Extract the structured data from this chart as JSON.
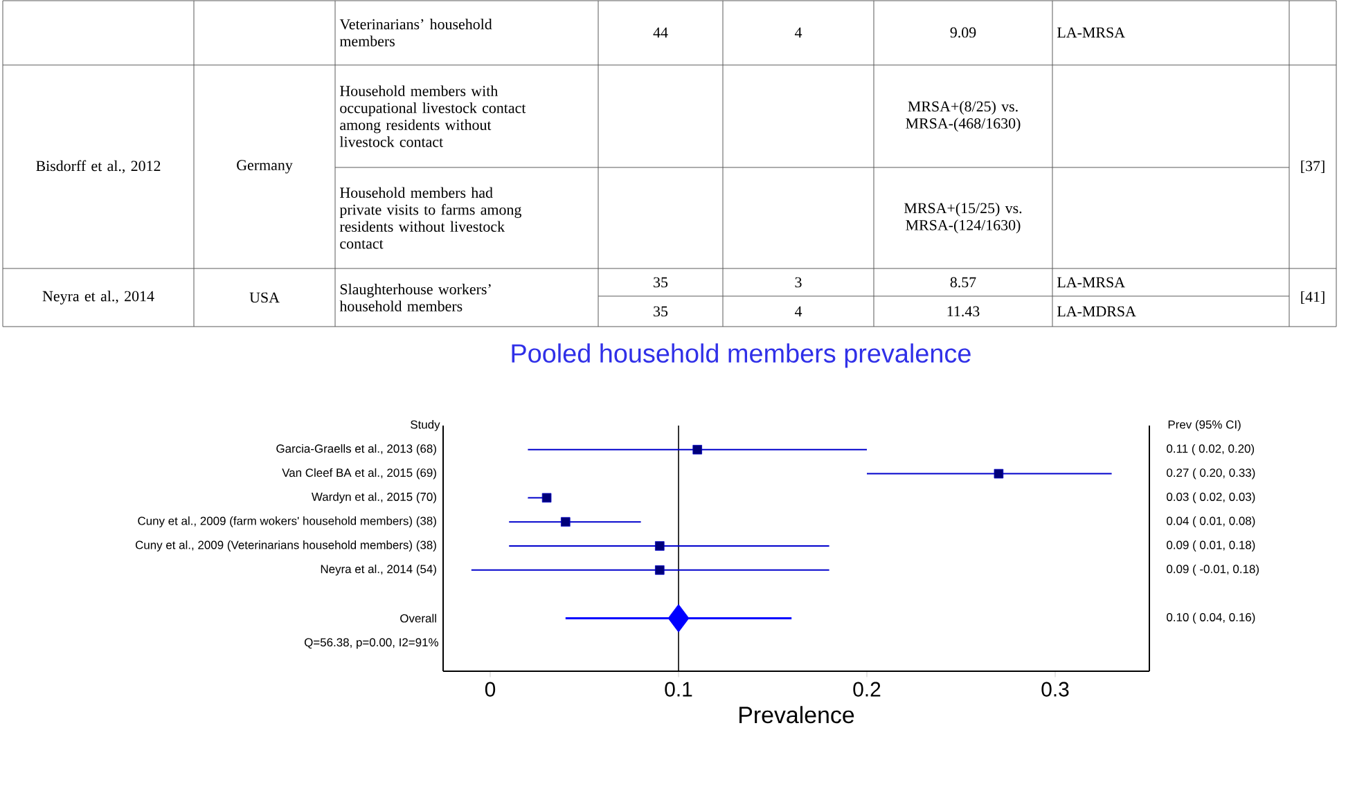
{
  "chart_data": {
    "type": "scatter",
    "orientation": "horizontal",
    "title": "Pooled household members prevalence",
    "xlabel": "Prevalence",
    "categories": [
      "Garcia-Graells et al., 2013 (68)",
      "Van Cleef BA et al., 2015 (69)",
      "Wardyn et al., 2015 (70)",
      "Cuny et al., 2009 (farm wokers' household members) (38)",
      "Cuny et al., 2009 (Veterinarians household members) (38)",
      "Neyra et al., 2014 (54)",
      null,
      "Overall"
    ],
    "xlim": [
      -0.025,
      0.35
    ],
    "xticks": [
      0,
      0.1,
      0.2,
      0.3
    ],
    "grid": false,
    "series": [
      {
        "color": "#0000cc",
        "marker": "square",
        "values": [
          0.11,
          0.27,
          0.03,
          0.04,
          0.09,
          0.09,
          null,
          null
        ],
        "errors": [
          [
            0.02,
            0.2
          ],
          [
            0.2,
            0.33
          ],
          [
            0.02,
            0.03
          ],
          [
            0.01,
            0.08
          ],
          [
            0.01,
            0.18
          ],
          [
            -0.01,
            0.18
          ],
          null,
          null
        ],
        "value_labels": [
          "0.11  ( 0.02, 0.20)",
          "0.27  ( 0.20, 0.33)",
          "0.03  ( 0.02, 0.03)",
          "0.04  ( 0.01, 0.08)",
          "0.09  ( 0.01, 0.18)",
          "0.09  ( -0.01, 0.18)",
          null,
          null
        ]
      },
      {
        "color": "#0000ff",
        "marker": "diamond",
        "values": [
          null,
          null,
          null,
          null,
          null,
          null,
          null,
          0.1
        ],
        "errors": [
          null,
          null,
          null,
          null,
          null,
          null,
          null,
          [
            0.04,
            0.16
          ]
        ]
      }
    ],
    "ref_lines": [
      {
        "axis": "x",
        "value": 0.1,
        "color": "#000000"
      }
    ],
    "annotations": [
      "Veterinarians’ household members",
      "44",
      "4",
      "9.09",
      "LA-MRSA",
      "Bisdorff et al., 2012",
      "Germany",
      "Household members with occupational livestock contact among residents without livestock contact",
      "MRSA+(8/25) vs. MRSA-(468/1630)",
      "Household members had private visits to farms among residents without livestock contact",
      "MRSA+(15/25) vs. MRSA-(124/1630)",
      "[37]",
      "Neyra et al., 2014",
      "USA",
      "Slaughterhouse workers’ household members",
      "35",
      "3",
      "8.57",
      "LA-MRSA",
      "35",
      "4",
      "11.43",
      "LA-MDRSA",
      "[41]",
      "Study",
      "Prev (95% CI)",
      "Q=56.38, p=0.00, I2=91%",
      "0.10  ( 0.04, 0.16)"
    ]
  }
}
